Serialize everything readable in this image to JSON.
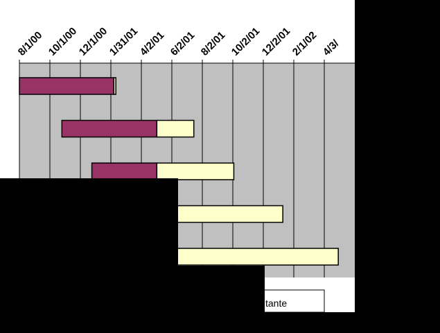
{
  "chart_data": {
    "type": "bar",
    "subtype": "gantt-stacked-horizontal",
    "x_axis_position": "top",
    "x_tick_labels": [
      "8/1/00",
      "10/1/00",
      "12/1/00",
      "1/31/01",
      "4/2/01",
      "6/2/01",
      "8/2/01",
      "10/2/01",
      "12/2/01",
      "2/1/02",
      "4/3/"
    ],
    "x_start": "2000-07-01",
    "x_end": "2002-04-30",
    "grid": true,
    "series": [
      {
        "color": "#993366"
      },
      {
        "color": "#ffffcc"
      }
    ],
    "tasks": [
      {
        "start": "2000-07-01",
        "end_completed": "2001-01-06",
        "end_remaining": "2001-01-10"
      },
      {
        "start": "2000-09-24",
        "end_completed": "2001-04-02",
        "end_remaining": "2001-06-15"
      },
      {
        "start": "2000-11-23",
        "end_completed": "2001-04-02",
        "end_remaining": "2001-09-03"
      },
      {
        "start": null,
        "end_completed": null,
        "end_remaining": "2001-12-10"
      },
      {
        "start": null,
        "end_completed": null,
        "end_remaining": "2002-03-31"
      }
    ],
    "legend_placement": "bottom",
    "legend_visible_text": "tante"
  },
  "colors": {
    "plot_background": "#c0c0c0",
    "gridline": "#000000",
    "occluder": "#000000"
  }
}
